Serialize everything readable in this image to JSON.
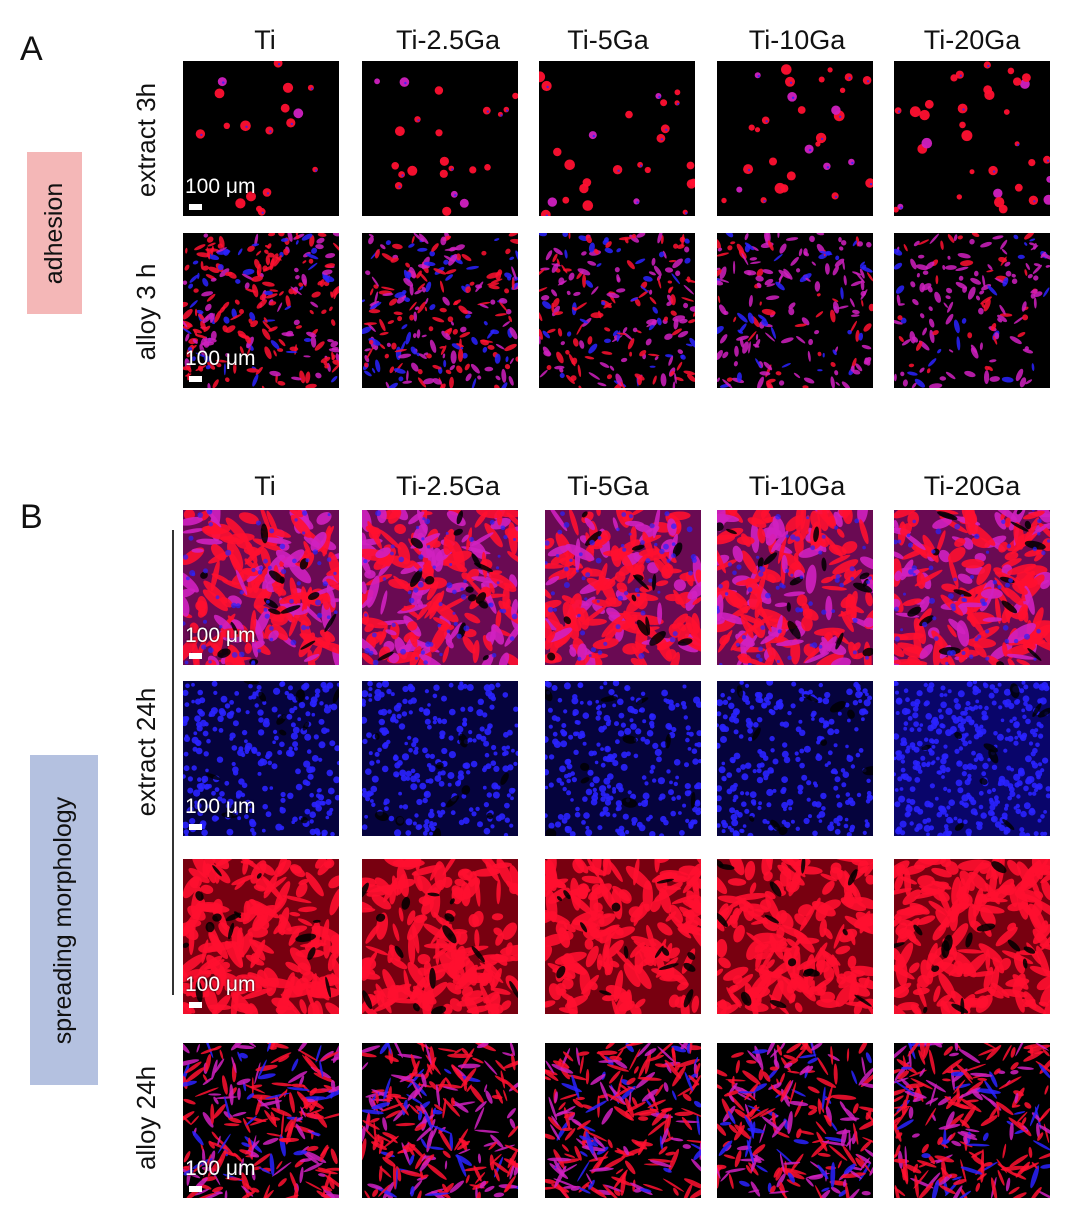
{
  "panels": {
    "a": {
      "letter": "A",
      "category": "adhesion"
    },
    "b": {
      "letter": "B",
      "category": "spreading morphology"
    }
  },
  "columns": [
    "Ti",
    "Ti-2.5Ga",
    "Ti-5Ga",
    "Ti-10Ga",
    "Ti-20Ga"
  ],
  "row_labels": {
    "a_extract": "extract 3h",
    "a_alloy": "alloy  3 h",
    "b_extract": "extract 24h",
    "b_alloy": "alloy  24h"
  },
  "scale_label": "100 μm",
  "stain_colors": {
    "background": "#000000",
    "actin_red": "#ff1030",
    "nuclei_blue": "#2a22ff",
    "merged_magenta": "#d020c0"
  }
}
